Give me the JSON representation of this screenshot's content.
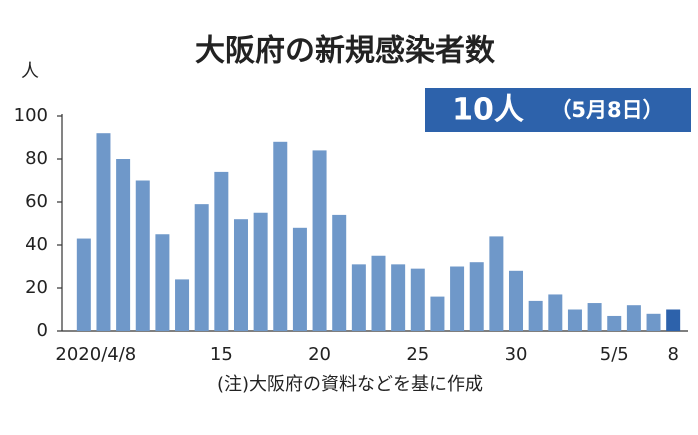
{
  "chart_data": {
    "type": "bar",
    "title": "大阪府の新規感染者数",
    "y_unit": "人",
    "badge": {
      "main": "10人",
      "sub": "（5月8日）"
    },
    "note": "(注)大阪府の資料などを基に作成",
    "categories": [
      "2020/4/8",
      null,
      null,
      null,
      null,
      null,
      null,
      "15",
      null,
      null,
      null,
      null,
      "20",
      null,
      null,
      null,
      null,
      "25",
      null,
      null,
      null,
      null,
      "30",
      null,
      null,
      null,
      null,
      "5/5",
      null,
      null,
      "8"
    ],
    "values": [
      43,
      92,
      80,
      70,
      45,
      24,
      59,
      74,
      52,
      55,
      88,
      48,
      84,
      54,
      31,
      35,
      31,
      29,
      16,
      30,
      32,
      44,
      28,
      14,
      17,
      10,
      13,
      7,
      12,
      8,
      10
    ],
    "colors": [
      "#6f98c9",
      "#6f98c9",
      "#6f98c9",
      "#6f98c9",
      "#6f98c9",
      "#6f98c9",
      "#6f98c9",
      "#6f98c9",
      "#6f98c9",
      "#6f98c9",
      "#6f98c9",
      "#6f98c9",
      "#6f98c9",
      "#6f98c9",
      "#6f98c9",
      "#6f98c9",
      "#6f98c9",
      "#6f98c9",
      "#6f98c9",
      "#6f98c9",
      "#6f98c9",
      "#6f98c9",
      "#6f98c9",
      "#6f98c9",
      "#6f98c9",
      "#6f98c9",
      "#6f98c9",
      "#6f98c9",
      "#6f98c9",
      "#6f98c9",
      "#2d62ab"
    ],
    "badge_color": "#2d62ab",
    "ylim": [
      0,
      100
    ],
    "yticks": [
      0,
      20,
      40,
      60,
      80,
      100
    ],
    "grid": false
  }
}
